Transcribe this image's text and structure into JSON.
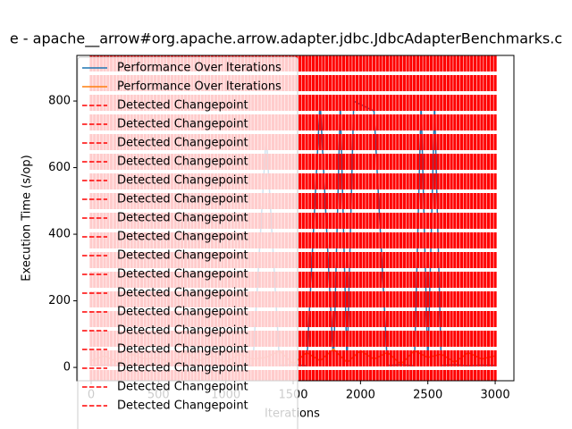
{
  "chart_data": {
    "type": "line",
    "title": "e - apache__arrow#org.apache.arrow.adapter.jdbc.JdbcAdapterBenchmarks.c",
    "x_label": "Iterations",
    "y_label": "Execution Time (s/op)",
    "xlim": [
      -106,
      3139
    ],
    "ylim": [
      -40,
      937
    ],
    "xticks": [
      0,
      500,
      1000,
      1500,
      2000,
      2500,
      3000
    ],
    "yticks": [
      0,
      200,
      400,
      600,
      800
    ],
    "series": [
      {
        "name": "Performance Over Iterations",
        "color": "#1f77b4",
        "x": [
          0,
          100,
          200,
          300,
          400,
          500,
          600,
          700,
          800,
          900,
          1000,
          1100,
          1200,
          1300,
          1400,
          1500,
          1600,
          1700,
          1800,
          1850,
          1900,
          1950,
          2000,
          2050,
          2100,
          2200,
          2300,
          2400,
          2450,
          2500,
          2550,
          2600,
          2700,
          2800,
          2900,
          3000
        ],
        "values": [
          5,
          8,
          6,
          7,
          5,
          9,
          6,
          8,
          5,
          7,
          6,
          8,
          5,
          700,
          6,
          8,
          5,
          800,
          7,
          790,
          6,
          800,
          790,
          780,
          770,
          6,
          8,
          5,
          790,
          7,
          790,
          6,
          8,
          5,
          7,
          6
        ]
      },
      {
        "name": "Performance Over Iterations",
        "color": "#ff7f0e",
        "x": [
          0,
          100,
          200,
          300,
          400,
          500,
          600,
          700,
          800,
          900,
          1000,
          1100,
          1200,
          1300,
          1400,
          1500,
          1600,
          1700,
          1800,
          1900,
          2000,
          2100,
          2200,
          2300,
          2400,
          2500,
          2600,
          2700,
          2800,
          2900,
          3000
        ],
        "values": [
          20,
          35,
          15,
          40,
          25,
          30,
          10,
          45,
          20,
          35,
          15,
          40,
          25,
          30,
          50,
          10,
          45,
          20,
          55,
          15,
          50,
          25,
          45,
          10,
          50,
          30,
          40,
          15,
          45,
          25,
          35
        ]
      }
    ],
    "changepoints": {
      "name": "Detected Changepoint",
      "color": "#ff0000",
      "x": [
        0,
        25,
        50,
        75,
        100,
        125,
        150,
        175,
        200,
        225,
        250,
        275,
        300,
        325,
        350,
        375,
        400,
        425,
        450,
        475,
        500,
        525,
        550,
        575,
        600,
        625,
        650,
        675,
        700,
        725,
        750,
        775,
        800,
        825,
        850,
        875,
        900,
        925,
        950,
        975,
        1000,
        1025,
        1050,
        1075,
        1100,
        1125,
        1150,
        1175,
        1200,
        1225,
        1250,
        1275,
        1300,
        1325,
        1350,
        1375,
        1400,
        1425,
        1450,
        1475,
        1500,
        1525,
        1550,
        1575,
        1600,
        1625,
        1650,
        1675,
        1700,
        1725,
        1750,
        1775,
        1800,
        1825,
        1850,
        1875,
        1900,
        1925,
        1950,
        1975,
        2000,
        2025,
        2050,
        2075,
        2100,
        2125,
        2150,
        2175,
        2200,
        2225,
        2250,
        2275,
        2300,
        2325,
        2350,
        2375,
        2400,
        2425,
        2450,
        2475,
        2500,
        2525,
        2550,
        2575,
        2600,
        2625,
        2650,
        2675,
        2700,
        2725,
        2750,
        2775,
        2800,
        2825,
        2850,
        2875,
        2900,
        2925,
        2950,
        2975,
        3000
      ]
    },
    "legend": "upper left"
  }
}
